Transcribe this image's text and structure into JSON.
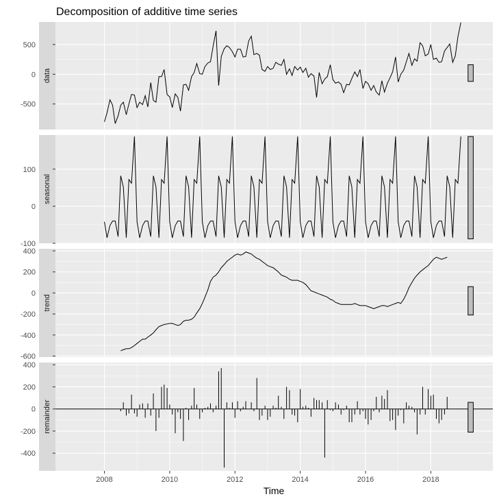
{
  "chart_data": {
    "type": "line",
    "title": "Decomposition of additive time series",
    "xlabel": "Time",
    "x_ticks": [
      2008,
      2010,
      2012,
      2014,
      2016,
      2018
    ],
    "x_range": [
      2006.5,
      2019.9
    ],
    "colors": {
      "panel_bg": "#ebebeb",
      "strip_bg": "#d9d9d9",
      "grid": "#ffffff",
      "line": "#000000",
      "range_bar_fill": "#bfbfbf"
    },
    "panels": [
      {
        "name": "data",
        "strip_label": "data",
        "type": "line",
        "ylim": [
          -930,
          880
        ],
        "y_ticks": [
          -500,
          0,
          500
        ],
        "y_tick_labels": [
          "-500",
          "0",
          "500"
        ],
        "range_bar": [
          -120,
          160
        ],
        "x": [
          2008.0,
          2008.08,
          2008.17,
          2008.25,
          2008.33,
          2008.42,
          2008.5,
          2008.58,
          2008.67,
          2008.75,
          2008.83,
          2008.92,
          2009.0,
          2009.08,
          2009.17,
          2009.25,
          2009.33,
          2009.42,
          2009.5,
          2009.58,
          2009.67,
          2009.75,
          2009.83,
          2009.92,
          2010.0,
          2010.08,
          2010.17,
          2010.25,
          2010.33,
          2010.42,
          2010.5,
          2010.58,
          2010.67,
          2010.75,
          2010.83,
          2010.92,
          2011.0,
          2011.08,
          2011.17,
          2011.25,
          2011.33,
          2011.42,
          2011.5,
          2011.58,
          2011.67,
          2011.75,
          2011.83,
          2011.92,
          2012.0,
          2012.08,
          2012.17,
          2012.25,
          2012.33,
          2012.42,
          2012.5,
          2012.58,
          2012.67,
          2012.75,
          2012.83,
          2012.92,
          2013.0,
          2013.08,
          2013.17,
          2013.25,
          2013.33,
          2013.42,
          2013.5,
          2013.58,
          2013.67,
          2013.75,
          2013.83,
          2013.92,
          2014.0,
          2014.08,
          2014.17,
          2014.25,
          2014.33,
          2014.42,
          2014.5,
          2014.58,
          2014.67,
          2014.75,
          2014.83,
          2014.92,
          2015.0,
          2015.08,
          2015.17,
          2015.25,
          2015.33,
          2015.42,
          2015.5,
          2015.58,
          2015.67,
          2015.75,
          2015.83,
          2015.92,
          2016.0,
          2016.08,
          2016.17,
          2016.25,
          2016.33,
          2016.42,
          2016.5,
          2016.58,
          2016.67,
          2016.75,
          2016.83,
          2016.92,
          2017.0,
          2017.08,
          2017.17,
          2017.25,
          2017.33,
          2017.42,
          2017.5,
          2017.58,
          2017.67,
          2017.75,
          2017.83,
          2017.92,
          2018.0,
          2018.08,
          2018.17,
          2018.25,
          2018.33,
          2018.42,
          2018.5,
          2018.58,
          2018.67,
          2018.75,
          2018.83,
          2018.92
        ],
        "y": [
          -800,
          -650,
          -430,
          -520,
          -830,
          -700,
          -520,
          -470,
          -680,
          -500,
          -340,
          -350,
          -560,
          -470,
          -510,
          -360,
          -550,
          -140,
          -440,
          -470,
          -40,
          -40,
          80,
          -340,
          -380,
          -560,
          -330,
          -390,
          -620,
          -180,
          -170,
          -270,
          -40,
          30,
          180,
          10,
          0,
          130,
          190,
          210,
          470,
          730,
          -190,
          300,
          430,
          480,
          450,
          380,
          290,
          420,
          420,
          290,
          300,
          560,
          640,
          330,
          350,
          320,
          80,
          50,
          130,
          80,
          100,
          200,
          170,
          150,
          250,
          0,
          90,
          -20,
          130,
          70,
          120,
          30,
          100,
          -50,
          10,
          -30,
          -390,
          30,
          -160,
          -80,
          -40,
          160,
          -90,
          -150,
          -130,
          -170,
          -310,
          -170,
          -180,
          -70,
          40,
          -40,
          80,
          -240,
          -120,
          -160,
          -270,
          -190,
          -300,
          -350,
          -110,
          -300,
          -150,
          -60,
          40,
          290,
          -130,
          0,
          70,
          210,
          350,
          150,
          260,
          220,
          530,
          480,
          310,
          340,
          500,
          250,
          270,
          200,
          210,
          390,
          450,
          510,
          200,
          310,
          630,
          870
        ]
      },
      {
        "name": "seasonal",
        "strip_label": "seasonal",
        "type": "line",
        "ylim": [
          -100,
          192
        ],
        "y_ticks": [
          -100,
          0,
          100
        ],
        "y_tick_labels": [
          "-100",
          "0",
          "100"
        ],
        "range_bar": [
          -88,
          188
        ],
        "x": [
          2008.0,
          2008.08,
          2008.17,
          2008.25,
          2008.33,
          2008.42,
          2008.5,
          2008.58,
          2008.67,
          2008.75,
          2008.83,
          2008.92,
          2009.0,
          2009.08,
          2009.17,
          2009.25,
          2009.33,
          2009.42,
          2009.5,
          2009.58,
          2009.67,
          2009.75,
          2009.83,
          2009.92,
          2010.0,
          2010.08,
          2010.17,
          2010.25,
          2010.33,
          2010.42,
          2010.5,
          2010.58,
          2010.67,
          2010.75,
          2010.83,
          2010.92,
          2011.0,
          2011.08,
          2011.17,
          2011.25,
          2011.33,
          2011.42,
          2011.5,
          2011.58,
          2011.67,
          2011.75,
          2011.83,
          2011.92,
          2012.0,
          2012.08,
          2012.17,
          2012.25,
          2012.33,
          2012.42,
          2012.5,
          2012.58,
          2012.67,
          2012.75,
          2012.83,
          2012.92,
          2013.0,
          2013.08,
          2013.17,
          2013.25,
          2013.33,
          2013.42,
          2013.5,
          2013.58,
          2013.67,
          2013.75,
          2013.83,
          2013.92,
          2014.0,
          2014.08,
          2014.17,
          2014.25,
          2014.33,
          2014.42,
          2014.5,
          2014.58,
          2014.67,
          2014.75,
          2014.83,
          2014.92,
          2015.0,
          2015.08,
          2015.17,
          2015.25,
          2015.33,
          2015.42,
          2015.5,
          2015.58,
          2015.67,
          2015.75,
          2015.83,
          2015.92,
          2016.0,
          2016.08,
          2016.17,
          2016.25,
          2016.33,
          2016.42,
          2016.5,
          2016.58,
          2016.67,
          2016.75,
          2016.83,
          2016.92,
          2017.0,
          2017.08,
          2017.17,
          2017.25,
          2017.33,
          2017.42,
          2017.5,
          2017.58,
          2017.67,
          2017.75,
          2017.83,
          2017.92,
          2018.0,
          2018.08,
          2018.17,
          2018.25,
          2018.33,
          2018.42,
          2018.5,
          2018.58,
          2018.67,
          2018.75,
          2018.83,
          2018.92
        ],
        "y": [
          -42,
          -85,
          -52,
          -40,
          -40,
          -82,
          82,
          52,
          -85,
          72,
          62,
          188,
          -42,
          -85,
          -52,
          -40,
          -40,
          -82,
          82,
          52,
          -85,
          72,
          62,
          188,
          -42,
          -85,
          -52,
          -40,
          -40,
          -82,
          82,
          52,
          -85,
          72,
          62,
          188,
          -42,
          -85,
          -52,
          -40,
          -40,
          -82,
          82,
          52,
          -85,
          72,
          62,
          188,
          -42,
          -85,
          -52,
          -40,
          -40,
          -82,
          82,
          52,
          -85,
          72,
          62,
          188,
          -42,
          -85,
          -52,
          -40,
          -40,
          -82,
          82,
          52,
          -85,
          72,
          62,
          188,
          -42,
          -85,
          -52,
          -40,
          -40,
          -82,
          82,
          52,
          -85,
          72,
          62,
          188,
          -42,
          -85,
          -52,
          -40,
          -40,
          -82,
          82,
          52,
          -85,
          72,
          62,
          188,
          -42,
          -85,
          -52,
          -40,
          -40,
          -82,
          82,
          52,
          -85,
          72,
          62,
          188,
          -42,
          -85,
          -52,
          -40,
          -40,
          -82,
          82,
          52,
          -85,
          72,
          62,
          188,
          -42,
          -85,
          -52,
          -40,
          -40,
          -82,
          82,
          52,
          -85,
          72,
          62,
          188
        ]
      },
      {
        "name": "trend",
        "strip_label": "trend",
        "type": "line",
        "ylim": [
          -610,
          420
        ],
        "y_ticks": [
          -600,
          -400,
          -200,
          0,
          200,
          400
        ],
        "y_tick_labels": [
          "-600",
          "-400",
          "-200",
          "0",
          "200",
          "400"
        ],
        "range_bar": [
          -210,
          60
        ],
        "x": [
          2008.5,
          2008.58,
          2008.67,
          2008.75,
          2008.83,
          2008.92,
          2009.0,
          2009.08,
          2009.17,
          2009.25,
          2009.33,
          2009.42,
          2009.5,
          2009.58,
          2009.67,
          2009.75,
          2009.83,
          2009.92,
          2010.0,
          2010.08,
          2010.17,
          2010.25,
          2010.33,
          2010.42,
          2010.5,
          2010.58,
          2010.67,
          2010.75,
          2010.83,
          2010.92,
          2011.0,
          2011.08,
          2011.17,
          2011.25,
          2011.33,
          2011.42,
          2011.5,
          2011.58,
          2011.67,
          2011.75,
          2011.83,
          2011.92,
          2012.0,
          2012.08,
          2012.17,
          2012.25,
          2012.33,
          2012.42,
          2012.5,
          2012.58,
          2012.67,
          2012.75,
          2012.83,
          2012.92,
          2013.0,
          2013.08,
          2013.17,
          2013.25,
          2013.33,
          2013.42,
          2013.5,
          2013.58,
          2013.67,
          2013.75,
          2013.83,
          2013.92,
          2014.0,
          2014.08,
          2014.17,
          2014.25,
          2014.33,
          2014.42,
          2014.5,
          2014.58,
          2014.67,
          2014.75,
          2014.83,
          2014.92,
          2015.0,
          2015.08,
          2015.17,
          2015.25,
          2015.33,
          2015.42,
          2015.5,
          2015.58,
          2015.67,
          2015.75,
          2015.83,
          2015.92,
          2016.0,
          2016.08,
          2016.17,
          2016.25,
          2016.33,
          2016.42,
          2016.5,
          2016.58,
          2016.67,
          2016.75,
          2016.83,
          2016.92,
          2017.0,
          2017.08,
          2017.17,
          2017.25,
          2017.33,
          2017.42,
          2017.5,
          2017.58,
          2017.67,
          2017.75,
          2017.83,
          2017.92,
          2018.0,
          2018.08,
          2018.17,
          2018.25,
          2018.33,
          2018.42,
          2018.5
        ],
        "y": [
          -550,
          -540,
          -530,
          -530,
          -520,
          -500,
          -480,
          -460,
          -440,
          -440,
          -420,
          -400,
          -380,
          -350,
          -320,
          -310,
          -300,
          -295,
          -290,
          -290,
          -300,
          -310,
          -300,
          -270,
          -260,
          -260,
          -250,
          -230,
          -190,
          -150,
          -100,
          -40,
          30,
          110,
          150,
          170,
          200,
          240,
          270,
          300,
          320,
          340,
          360,
          370,
          360,
          370,
          390,
          380,
          370,
          350,
          330,
          320,
          300,
          280,
          260,
          250,
          240,
          220,
          200,
          170,
          160,
          150,
          130,
          120,
          120,
          120,
          110,
          100,
          80,
          50,
          20,
          10,
          0,
          -10,
          -20,
          -30,
          -40,
          -60,
          -70,
          -90,
          -100,
          -110,
          -110,
          -110,
          -110,
          -110,
          -100,
          -110,
          -120,
          -120,
          -120,
          -130,
          -140,
          -150,
          -140,
          -130,
          -120,
          -120,
          -130,
          -120,
          -110,
          -100,
          -90,
          -100,
          -60,
          -10,
          50,
          100,
          140,
          170,
          200,
          220,
          240,
          260,
          290,
          320,
          340,
          330,
          320,
          330,
          340
        ]
      },
      {
        "name": "remainder",
        "strip_label": "remainder",
        "type": "bar",
        "ylim": [
          -560,
          420
        ],
        "y_ticks": [
          -400,
          -200,
          0,
          200,
          400
        ],
        "y_tick_labels": [
          "-400",
          "-200",
          "0",
          "200",
          "400"
        ],
        "range_bar": [
          -210,
          60
        ],
        "x": [
          2008.5,
          2008.58,
          2008.67,
          2008.75,
          2008.83,
          2008.92,
          2009.0,
          2009.08,
          2009.17,
          2009.25,
          2009.33,
          2009.42,
          2009.5,
          2009.58,
          2009.67,
          2009.75,
          2009.83,
          2009.92,
          2010.0,
          2010.08,
          2010.17,
          2010.25,
          2010.33,
          2010.42,
          2010.5,
          2010.58,
          2010.67,
          2010.75,
          2010.83,
          2010.92,
          2011.0,
          2011.08,
          2011.17,
          2011.25,
          2011.33,
          2011.42,
          2011.5,
          2011.58,
          2011.67,
          2011.75,
          2011.83,
          2011.92,
          2012.0,
          2012.08,
          2012.17,
          2012.25,
          2012.33,
          2012.42,
          2012.5,
          2012.58,
          2012.67,
          2012.75,
          2012.83,
          2012.92,
          2013.0,
          2013.08,
          2013.17,
          2013.25,
          2013.33,
          2013.42,
          2013.5,
          2013.58,
          2013.67,
          2013.75,
          2013.83,
          2013.92,
          2014.0,
          2014.08,
          2014.17,
          2014.25,
          2014.33,
          2014.42,
          2014.5,
          2014.58,
          2014.67,
          2014.75,
          2014.83,
          2014.92,
          2015.0,
          2015.08,
          2015.17,
          2015.25,
          2015.33,
          2015.42,
          2015.5,
          2015.58,
          2015.67,
          2015.75,
          2015.83,
          2015.92,
          2016.0,
          2016.08,
          2016.17,
          2016.25,
          2016.33,
          2016.42,
          2016.5,
          2016.58,
          2016.67,
          2016.75,
          2016.83,
          2016.92,
          2017.0,
          2017.08,
          2017.17,
          2017.25,
          2017.33,
          2017.42,
          2017.5,
          2017.58,
          2017.67,
          2017.75,
          2017.83,
          2017.92,
          2018.0,
          2018.08,
          2018.17,
          2018.25,
          2018.33,
          2018.42,
          2018.5
        ],
        "y": [
          -20,
          60,
          -60,
          -40,
          130,
          -40,
          -70,
          40,
          50,
          -80,
          50,
          -60,
          140,
          -200,
          -80,
          200,
          220,
          190,
          40,
          -50,
          -220,
          -30,
          -90,
          -290,
          10,
          -100,
          30,
          190,
          40,
          -90,
          -30,
          10,
          20,
          50,
          -30,
          30,
          340,
          370,
          -530,
          60,
          10,
          60,
          -80,
          70,
          -20,
          20,
          70,
          0,
          60,
          -20,
          280,
          -100,
          -60,
          30,
          -100,
          -70,
          30,
          10,
          120,
          20,
          -90,
          200,
          170,
          -50,
          -60,
          -120,
          180,
          20,
          30,
          10,
          -70,
          100,
          80,
          80,
          60,
          -440,
          80,
          -10,
          -20,
          60,
          40,
          -50,
          -10,
          30,
          -120,
          -120,
          -50,
          70,
          -50,
          -20,
          -90,
          -140,
          -100,
          -20,
          110,
          -30,
          120,
          90,
          170,
          -110,
          -100,
          -190,
          -60,
          -10,
          -130,
          60,
          30,
          20,
          -30,
          -230,
          -50,
          200,
          -50,
          180,
          120,
          130,
          -90,
          -130,
          -100,
          -50,
          110
        ]
      }
    ]
  }
}
